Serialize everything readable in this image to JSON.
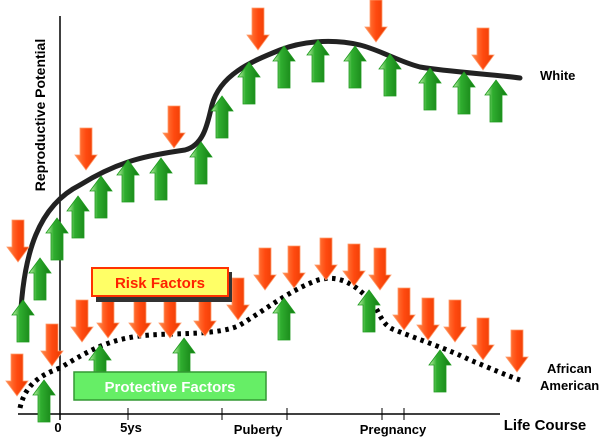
{
  "axes": {
    "y_label": "Reproductive Potential",
    "x_label": "Life Course",
    "ticks": [
      "0",
      "5ys",
      "Puberty",
      "Pregnancy"
    ]
  },
  "series": {
    "white": "White",
    "african_american_line1": "African",
    "african_american_line2": "American"
  },
  "legend": {
    "risk": "Risk Factors",
    "protective": "Protective Factors"
  },
  "colors": {
    "risk_arrow": "#ff5a1f",
    "risk_arrow_edge": "#ff9a6a",
    "protective_arrow": "#1f9a1f",
    "protective_arrow_edge": "#b8f0a0",
    "risk_box_fill": "#ffff66",
    "risk_box_border": "#ff3300",
    "risk_text": "#ff2200",
    "protective_box_fill": "#66ee66",
    "protective_box_border": "#339933",
    "protective_text": "#ffffff"
  }
}
